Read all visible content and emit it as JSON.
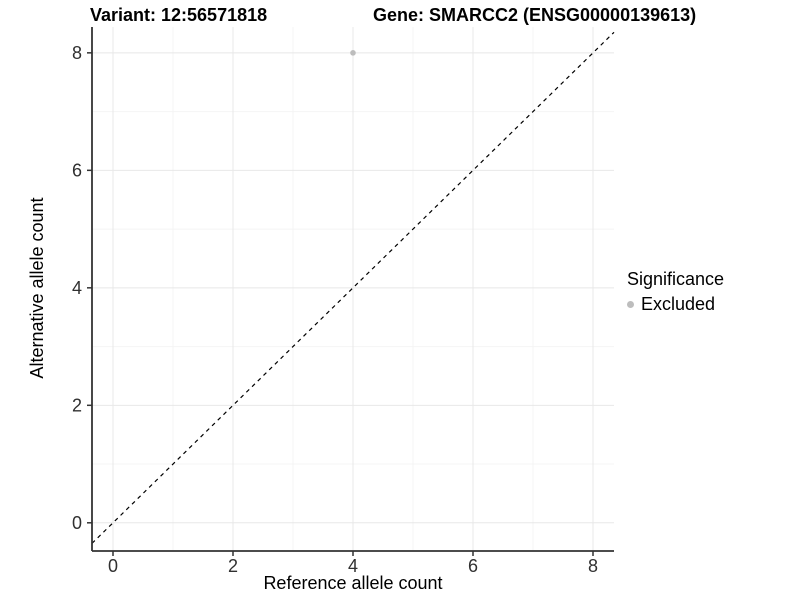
{
  "titles": {
    "left": "Variant: 12:56571818",
    "right": "Gene: SMARCC2 (ENSG00000139613)"
  },
  "chart_data": {
    "type": "scatter",
    "title": "Variant: 12:56571818   Gene: SMARCC2 (ENSG00000139613)",
    "xlabel": "Reference allele count",
    "ylabel": "Alternative allele count",
    "xlim": [
      -0.35,
      8.35
    ],
    "ylim": [
      -0.48,
      8.44
    ],
    "xticks": [
      0,
      2,
      4,
      6,
      8
    ],
    "yticks": [
      0,
      2,
      4,
      6,
      8
    ],
    "xminor": [
      1,
      3,
      5,
      7
    ],
    "yminor": [
      1,
      3,
      5,
      7
    ],
    "grid": "on",
    "reference_line": {
      "type": "identity",
      "style": "dashed",
      "color": "#000000"
    },
    "series": [
      {
        "name": "Excluded",
        "points": [
          {
            "x": 4,
            "y": 8
          }
        ],
        "color": "#bdbdbd"
      }
    ],
    "legend": {
      "position": "right",
      "title": "Significance",
      "entries": [
        {
          "label": "Excluded",
          "color": "#bdbdbd"
        }
      ]
    },
    "colors": {
      "background": "#ffffff",
      "grid_major": "#e8e8e8",
      "grid_minor": "#f4f4f4",
      "axis_line": "#333333",
      "tick": "#333333",
      "tick_label": "#303030",
      "point": "#bdbdbd"
    }
  }
}
